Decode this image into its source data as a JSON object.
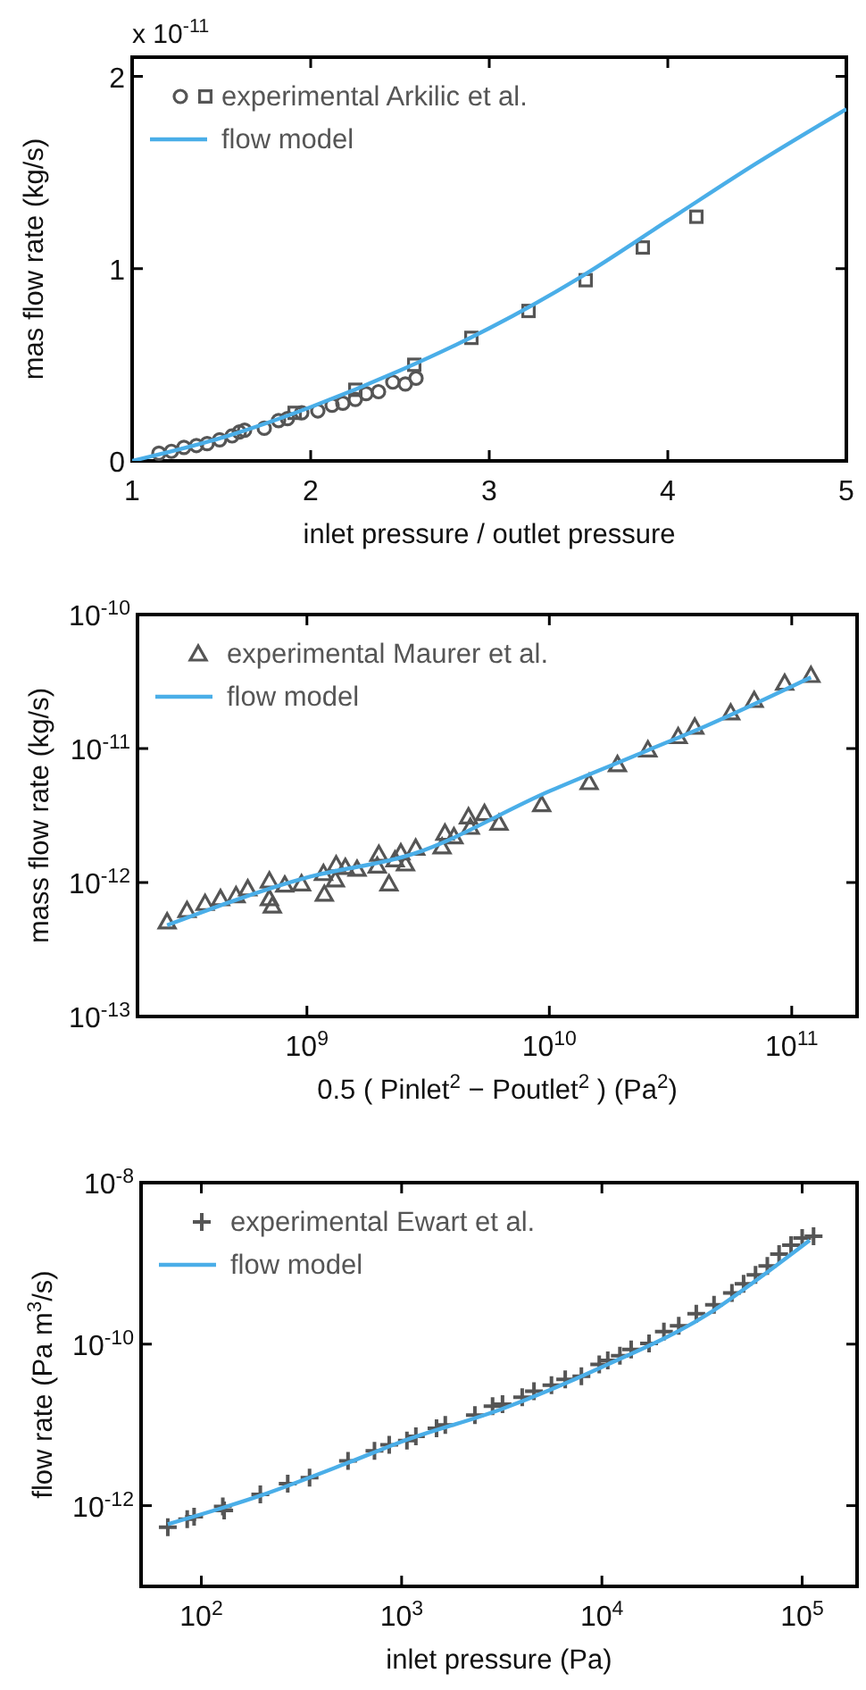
{
  "chart_data": [
    {
      "type": "scatter",
      "xlabel": "inlet pressure / outlet pressure",
      "ylabel": "mas flow rate (kg/s)",
      "annotations": [
        "x 10$^{-11}$"
      ],
      "xlim": [
        1,
        5
      ],
      "ylim": [
        0,
        2.1
      ],
      "xticks": [
        1,
        2,
        3,
        4,
        5
      ],
      "yticks": [
        0,
        1,
        2
      ],
      "grid": false,
      "legend": "top left",
      "series": [
        {
          "name": "experimental Arkilic et al.",
          "marker": "circle",
          "color": "#555555",
          "x": [
            1.15,
            1.22,
            1.29,
            1.36,
            1.42,
            1.49,
            1.56,
            1.6,
            1.63,
            1.74,
            1.82,
            1.87,
            1.95,
            2.04,
            2.12,
            2.18,
            2.25,
            2.31,
            2.38,
            2.46,
            2.53,
            2.59
          ],
          "values": [
            0.04,
            0.05,
            0.07,
            0.08,
            0.09,
            0.11,
            0.13,
            0.15,
            0.16,
            0.17,
            0.21,
            0.22,
            0.25,
            0.26,
            0.29,
            0.3,
            0.32,
            0.35,
            0.36,
            0.41,
            0.4,
            0.43
          ]
        },
        {
          "marker": "square",
          "color": "#555555",
          "x": [
            1.91,
            2.25,
            2.58,
            2.9,
            3.22,
            3.54,
            3.86,
            4.16
          ],
          "values": [
            0.25,
            0.37,
            0.5,
            0.64,
            0.78,
            0.94,
            1.11,
            1.27
          ]
        },
        {
          "name": "flow model",
          "type": "line",
          "line_style": "solid",
          "color": "#4aaee8",
          "x": [
            1,
            1.5,
            2,
            2.5,
            3,
            3.5,
            4,
            4.5,
            5
          ],
          "values": [
            0,
            0.12,
            0.28,
            0.47,
            0.69,
            0.95,
            1.25,
            1.55,
            1.83
          ]
        }
      ]
    },
    {
      "type": "scatter",
      "xlabel": "0.5 ( Pinlet$^{2}$ − Poutlet$^{2}$ ) (Pa$^{2}$)",
      "ylabel": "mass flow rate (kg/s)",
      "log": "xy",
      "xlim": [
        200000000.0,
        186000000000.0
      ],
      "ylim": [
        1e-13,
        1e-10
      ],
      "xticks": [
        {
          "value": 1000000000.0,
          "label": "10$^{9}$"
        },
        {
          "value": 10000000000.0,
          "label": "10$^{10}$"
        },
        {
          "value": 100000000000.0,
          "label": "10$^{11}$"
        }
      ],
      "yticks": [
        {
          "value": 1e-13,
          "label": "10$^{-13}$"
        },
        {
          "value": 1e-12,
          "label": "10$^{-12}$"
        },
        {
          "value": 1e-11,
          "label": "10$^{-11}$"
        },
        {
          "value": 1e-10,
          "label": "10$^{-10}$"
        }
      ],
      "grid": false,
      "legend": "top left",
      "series": [
        {
          "name": "experimental Maurer et al.",
          "marker": "triangle",
          "color": "#555555",
          "x": [
            265000000.0,
            320000000.0,
            380000000.0,
            440000000.0,
            510000000.0,
            570000000.0,
            700000000.0,
            700000000.0,
            720000000.0,
            810000000.0,
            950000000.0,
            1170000000.0,
            1180000000.0,
            1320000000.0,
            1310000000.0,
            1440000000.0,
            1610000000.0,
            1950000000.0,
            1980000000.0,
            2180000000.0,
            2310000000.0,
            2440000000.0,
            2550000000.0,
            2810000000.0,
            3610000000.0,
            3710000000.0,
            4040000000.0,
            4720000000.0,
            4640000000.0,
            5400000000.0,
            6200000000.0,
            9300000000.0,
            14600000000.0,
            19100000000.0,
            25500000000.0,
            34000000000.0,
            39800000000.0,
            56000000000.0,
            70000000000.0,
            93500000000.0,
            120000000000.0
          ],
          "values": [
            5.1e-13,
            6.2e-13,
            7e-13,
            7.6e-13,
            8e-13,
            9e-13,
            1.03e-12,
            7.6e-13,
            6.7e-13,
            9.6e-13,
            9.8e-13,
            1.17e-12,
            8.2e-13,
            1.36e-12,
            1.05e-12,
            1.3e-12,
            1.26e-12,
            1.33e-12,
            1.63e-12,
            9.8e-13,
            1.48e-12,
            1.67e-12,
            1.38e-12,
            1.81e-12,
            1.85e-12,
            2.34e-12,
            2.2e-12,
            2.59e-12,
            3.1e-12,
            3.28e-12,
            2.78e-12,
            3.82e-12,
            5.58e-12,
            7.6e-12,
            9.8e-12,
            1.23e-11,
            1.45e-11,
            1.85e-11,
            2.29e-11,
            3.08e-11,
            3.52e-11
          ]
        },
        {
          "name": "flow model",
          "type": "line",
          "line_style": "solid",
          "color": "#4aaee8",
          "x": [
            265000000.0,
            1000000000.0,
            2730000000.0,
            10000000000.0,
            25500000000.0,
            44500000000.0,
            120000000000.0
          ],
          "values": [
            4.8e-13,
            1.09e-12,
            1.63e-12,
            4.8e-12,
            9.7e-12,
            1.48e-11,
            3.4e-11
          ]
        }
      ]
    },
    {
      "type": "scatter",
      "xlabel": "inlet pressure (Pa)",
      "ylabel": "flow rate (Pa m$^{3}$/s)",
      "log": "xy",
      "xlim": [
        50,
        188000.0
      ],
      "ylim": [
        1e-13,
        1e-08
      ],
      "xticks": [
        {
          "value": 100,
          "label": "10$^{2}$"
        },
        {
          "value": 1000,
          "label": "10$^{3}$"
        },
        {
          "value": 10000,
          "label": "10$^{4}$"
        },
        {
          "value": 100000,
          "label": "10$^{5}$"
        }
      ],
      "yticks": [
        {
          "value": 1e-12,
          "label": "10$^{-12}$"
        },
        {
          "value": 1e-10,
          "label": "10$^{-10}$"
        },
        {
          "value": 1e-08,
          "label": "10$^{-8}$"
        }
      ],
      "grid": false,
      "legend": "top left",
      "series": [
        {
          "name": "experimental Ewart et al.",
          "marker": "cross",
          "color": "#555555",
          "x": [
            68,
            85,
            92,
            128,
            130,
            197,
            270,
            347,
            540,
            732,
            867,
            1063,
            1178,
            1494,
            1652,
            2322,
            2846,
            3190,
            4000,
            4580,
            5600,
            6560,
            7900,
            9700,
            10700,
            12300,
            14000,
            17200,
            20400,
            24200,
            29600,
            36300,
            44600,
            51000,
            58500,
            67000,
            76700,
            88000,
            100000,
            114000
          ],
          "values": [
            5.4e-13,
            6.8e-13,
            7.3e-13,
            9.8e-13,
            8.7e-13,
            1.38e-12,
            1.87e-12,
            2.22e-12,
            3.58e-12,
            4.78e-12,
            5.66e-12,
            6.4e-12,
            7.2e-12,
            9.1e-12,
            1e-11,
            1.32e-11,
            1.71e-11,
            1.8e-11,
            2.2e-11,
            2.61e-11,
            3.1e-11,
            3.67e-11,
            4e-11,
            5.6e-11,
            6.3e-11,
            7.2e-11,
            8.6e-11,
            1.02e-10,
            1.43e-10,
            1.69e-10,
            2.38e-10,
            3.07e-10,
            4.3e-10,
            5.6e-10,
            7.2e-10,
            9.3e-10,
            1.3e-09,
            1.68e-09,
            2.06e-09,
            2.17e-09
          ]
        },
        {
          "name": "flow model",
          "type": "line",
          "line_style": "solid",
          "color": "#4aaee8",
          "x": [
            68,
            197,
            540,
            1000,
            3160,
            10000,
            34000,
            67000,
            109000
          ],
          "values": [
            5.9e-13,
            1.33e-12,
            3.4e-12,
            6.2e-12,
            1.57e-11,
            5.2e-11,
            2.37e-10,
            7.8e-10,
            1.93e-09
          ]
        }
      ]
    }
  ]
}
